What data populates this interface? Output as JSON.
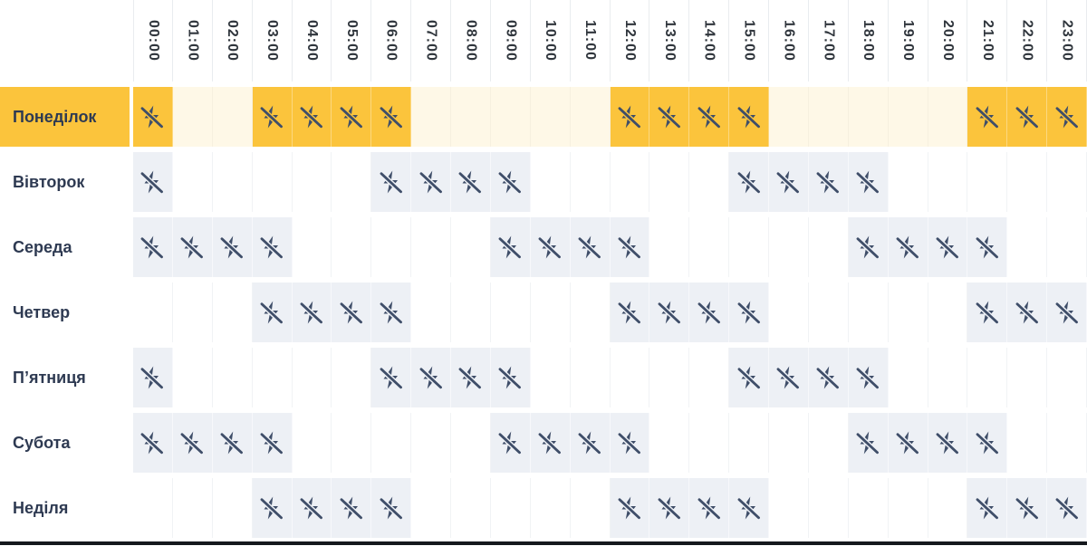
{
  "header": {
    "hours": [
      "00:00",
      "01:00",
      "02:00",
      "03:00",
      "04:00",
      "05:00",
      "06:00",
      "07:00",
      "08:00",
      "09:00",
      "10:00",
      "11:00",
      "12:00",
      "13:00",
      "14:00",
      "15:00",
      "16:00",
      "17:00",
      "18:00",
      "19:00",
      "20:00",
      "21:00",
      "22:00",
      "23:00"
    ]
  },
  "days": [
    {
      "label": "Понеділок",
      "today": true,
      "outage_hours": [
        0,
        3,
        4,
        5,
        6,
        12,
        13,
        14,
        15,
        21,
        22,
        23
      ]
    },
    {
      "label": "Вівторок",
      "today": false,
      "outage_hours": [
        0,
        6,
        7,
        8,
        9,
        15,
        16,
        17,
        18
      ]
    },
    {
      "label": "Середа",
      "today": false,
      "outage_hours": [
        0,
        1,
        2,
        3,
        9,
        10,
        11,
        12,
        18,
        19,
        20,
        21
      ]
    },
    {
      "label": "Четвер",
      "today": false,
      "outage_hours": [
        3,
        4,
        5,
        6,
        12,
        13,
        14,
        15,
        21,
        22,
        23
      ]
    },
    {
      "label": "П’ятниця",
      "today": false,
      "outage_hours": [
        0,
        6,
        7,
        8,
        9,
        15,
        16,
        17,
        18
      ]
    },
    {
      "label": "Субота",
      "today": false,
      "outage_hours": [
        0,
        1,
        2,
        3,
        9,
        10,
        11,
        12,
        18,
        19,
        20,
        21
      ]
    },
    {
      "label": "Неділя",
      "today": false,
      "outage_hours": [
        3,
        4,
        5,
        6,
        12,
        13,
        14,
        15,
        21,
        22,
        23
      ]
    }
  ],
  "icons": {
    "outage": "power-off-icon"
  },
  "colors": {
    "today_row_bg": "#fbc43c",
    "today_row_empty_bg": "#fef8e7",
    "outage_cell_bg": "#edf0f5",
    "idle_cell_bg": "#ffffff",
    "icon": "#3f4e69",
    "day_label_text": "#2e3a52",
    "hour_label_text": "#30363d",
    "grid_line": "#e9ecef",
    "bottom_bar": "#15181d"
  }
}
